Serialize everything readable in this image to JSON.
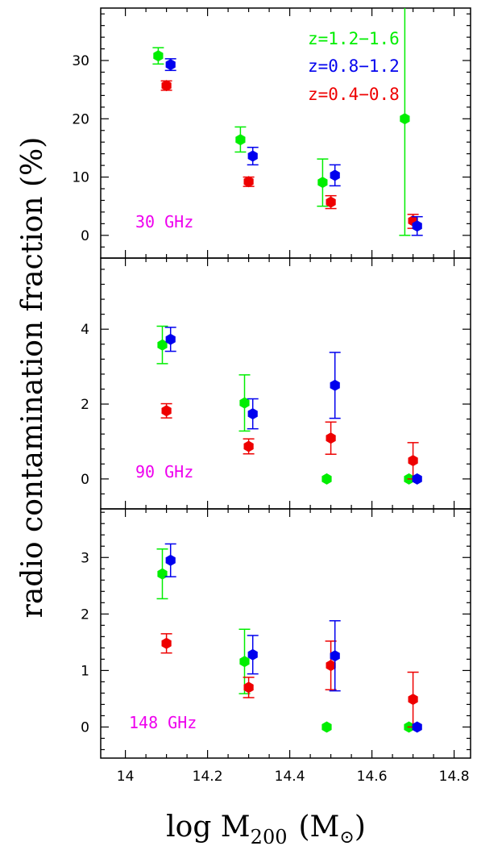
{
  "chart_data": {
    "type": "scatter",
    "ylabel": "radio contamination fraction (%)",
    "xlabel_main": "log M",
    "xlabel_sub": "200",
    "xlabel_unit_open": "(M",
    "xlabel_unit_symbol": "⊙",
    "xlabel_unit_close": ")",
    "xlim": [
      13.94,
      14.84
    ],
    "x_ticks": [
      14,
      14.2,
      14.4,
      14.6,
      14.8
    ],
    "x_tick_labels": [
      "14",
      "14.2",
      "14.4",
      "14.6",
      "14.8"
    ],
    "series_colors": {
      "z=1.2-1.6": "#00ee00",
      "z=0.8-1.2": "#0000ee",
      "z=0.4-0.8": "#ee0000"
    },
    "legend": [
      {
        "label": "z=1.2−1.6",
        "color": "#00ee00"
      },
      {
        "label": "z=0.8−1.2",
        "color": "#0000ee"
      },
      {
        "label": "z=0.4−0.8",
        "color": "#ee0000"
      }
    ],
    "panels": [
      {
        "label": "30 GHz",
        "label_color": "#ee00ee",
        "ylim": [
          -3.9,
          39
        ],
        "y_ticks": [
          0,
          10,
          20,
          30
        ],
        "y_tick_labels": [
          "0",
          "10",
          "20",
          "30"
        ],
        "series": [
          {
            "key": "z=1.2-1.6",
            "points": [
              {
                "x": 14.08,
                "y": 30.8,
                "lo": 29.4,
                "hi": 32.2
              },
              {
                "x": 14.28,
                "y": 16.4,
                "lo": 14.3,
                "hi": 18.6
              },
              {
                "x": 14.48,
                "y": 9.1,
                "lo": 5.0,
                "hi": 13.1
              },
              {
                "x": 14.68,
                "y": 20.0,
                "lo": 0.0,
                "hi": 39.0
              }
            ]
          },
          {
            "key": "z=0.8-1.2",
            "points": [
              {
                "x": 14.11,
                "y": 29.3,
                "lo": 28.3,
                "hi": 30.3
              },
              {
                "x": 14.31,
                "y": 13.6,
                "lo": 12.1,
                "hi": 15.1
              },
              {
                "x": 14.51,
                "y": 10.3,
                "lo": 8.5,
                "hi": 12.1
              },
              {
                "x": 14.71,
                "y": 1.6,
                "lo": 0.0,
                "hi": 3.2
              }
            ]
          },
          {
            "key": "z=0.4-0.8",
            "points": [
              {
                "x": 14.1,
                "y": 25.7,
                "lo": 24.9,
                "hi": 26.5
              },
              {
                "x": 14.3,
                "y": 9.2,
                "lo": 8.4,
                "hi": 10.0
              },
              {
                "x": 14.5,
                "y": 5.7,
                "lo": 4.6,
                "hi": 6.8
              },
              {
                "x": 14.7,
                "y": 2.5,
                "lo": 1.2,
                "hi": 3.6
              }
            ]
          }
        ]
      },
      {
        "label": "90 GHz",
        "label_color": "#ee00ee",
        "ylim": [
          -0.8,
          5.9
        ],
        "y_ticks": [
          0,
          2,
          4
        ],
        "y_tick_labels": [
          "0",
          "2",
          "4"
        ],
        "series": [
          {
            "key": "z=1.2-1.6",
            "points": [
              {
                "x": 14.09,
                "y": 3.58,
                "lo": 3.08,
                "hi": 4.08
              },
              {
                "x": 14.29,
                "y": 2.03,
                "lo": 1.28,
                "hi": 2.78
              },
              {
                "x": 14.49,
                "y": 0.0,
                "lo": 0.0,
                "hi": 0.0
              },
              {
                "x": 14.69,
                "y": 0.0,
                "lo": 0.0,
                "hi": 0.0
              }
            ]
          },
          {
            "key": "z=0.8-1.2",
            "points": [
              {
                "x": 14.11,
                "y": 3.73,
                "lo": 3.41,
                "hi": 4.05
              },
              {
                "x": 14.31,
                "y": 1.74,
                "lo": 1.34,
                "hi": 2.14
              },
              {
                "x": 14.51,
                "y": 2.5,
                "lo": 1.62,
                "hi": 3.38
              },
              {
                "x": 14.71,
                "y": 0.0,
                "lo": 0.0,
                "hi": 0.0
              }
            ]
          },
          {
            "key": "z=0.4-0.8",
            "points": [
              {
                "x": 14.1,
                "y": 1.82,
                "lo": 1.63,
                "hi": 2.01
              },
              {
                "x": 14.3,
                "y": 0.87,
                "lo": 0.67,
                "hi": 1.07
              },
              {
                "x": 14.5,
                "y": 1.09,
                "lo": 0.66,
                "hi": 1.52
              },
              {
                "x": 14.7,
                "y": 0.49,
                "lo": 0.0,
                "hi": 0.97
              }
            ]
          }
        ]
      },
      {
        "label": "148 GHz",
        "label_color": "#ee00ee",
        "ylim": [
          -0.55,
          3.86
        ],
        "y_ticks": [
          0,
          1,
          2,
          3
        ],
        "y_tick_labels": [
          "0",
          "1",
          "2",
          "3"
        ],
        "series": [
          {
            "key": "z=1.2-1.6",
            "points": [
              {
                "x": 14.09,
                "y": 2.71,
                "lo": 2.27,
                "hi": 3.15
              },
              {
                "x": 14.29,
                "y": 1.16,
                "lo": 0.59,
                "hi": 1.73
              },
              {
                "x": 14.49,
                "y": 0.0,
                "lo": 0.0,
                "hi": 0.0
              },
              {
                "x": 14.69,
                "y": 0.0,
                "lo": 0.0,
                "hi": 0.0
              }
            ]
          },
          {
            "key": "z=0.8-1.2",
            "points": [
              {
                "x": 14.11,
                "y": 2.95,
                "lo": 2.66,
                "hi": 3.24
              },
              {
                "x": 14.31,
                "y": 1.28,
                "lo": 0.94,
                "hi": 1.62
              },
              {
                "x": 14.51,
                "y": 1.26,
                "lo": 0.64,
                "hi": 1.88
              },
              {
                "x": 14.71,
                "y": 0.0,
                "lo": 0.0,
                "hi": 0.0
              }
            ]
          },
          {
            "key": "z=0.4-0.8",
            "points": [
              {
                "x": 14.1,
                "y": 1.48,
                "lo": 1.31,
                "hi": 1.65
              },
              {
                "x": 14.3,
                "y": 0.7,
                "lo": 0.52,
                "hi": 0.88
              },
              {
                "x": 14.5,
                "y": 1.09,
                "lo": 0.66,
                "hi": 1.52
              },
              {
                "x": 14.7,
                "y": 0.49,
                "lo": 0.0,
                "hi": 0.97
              }
            ]
          }
        ]
      }
    ]
  }
}
